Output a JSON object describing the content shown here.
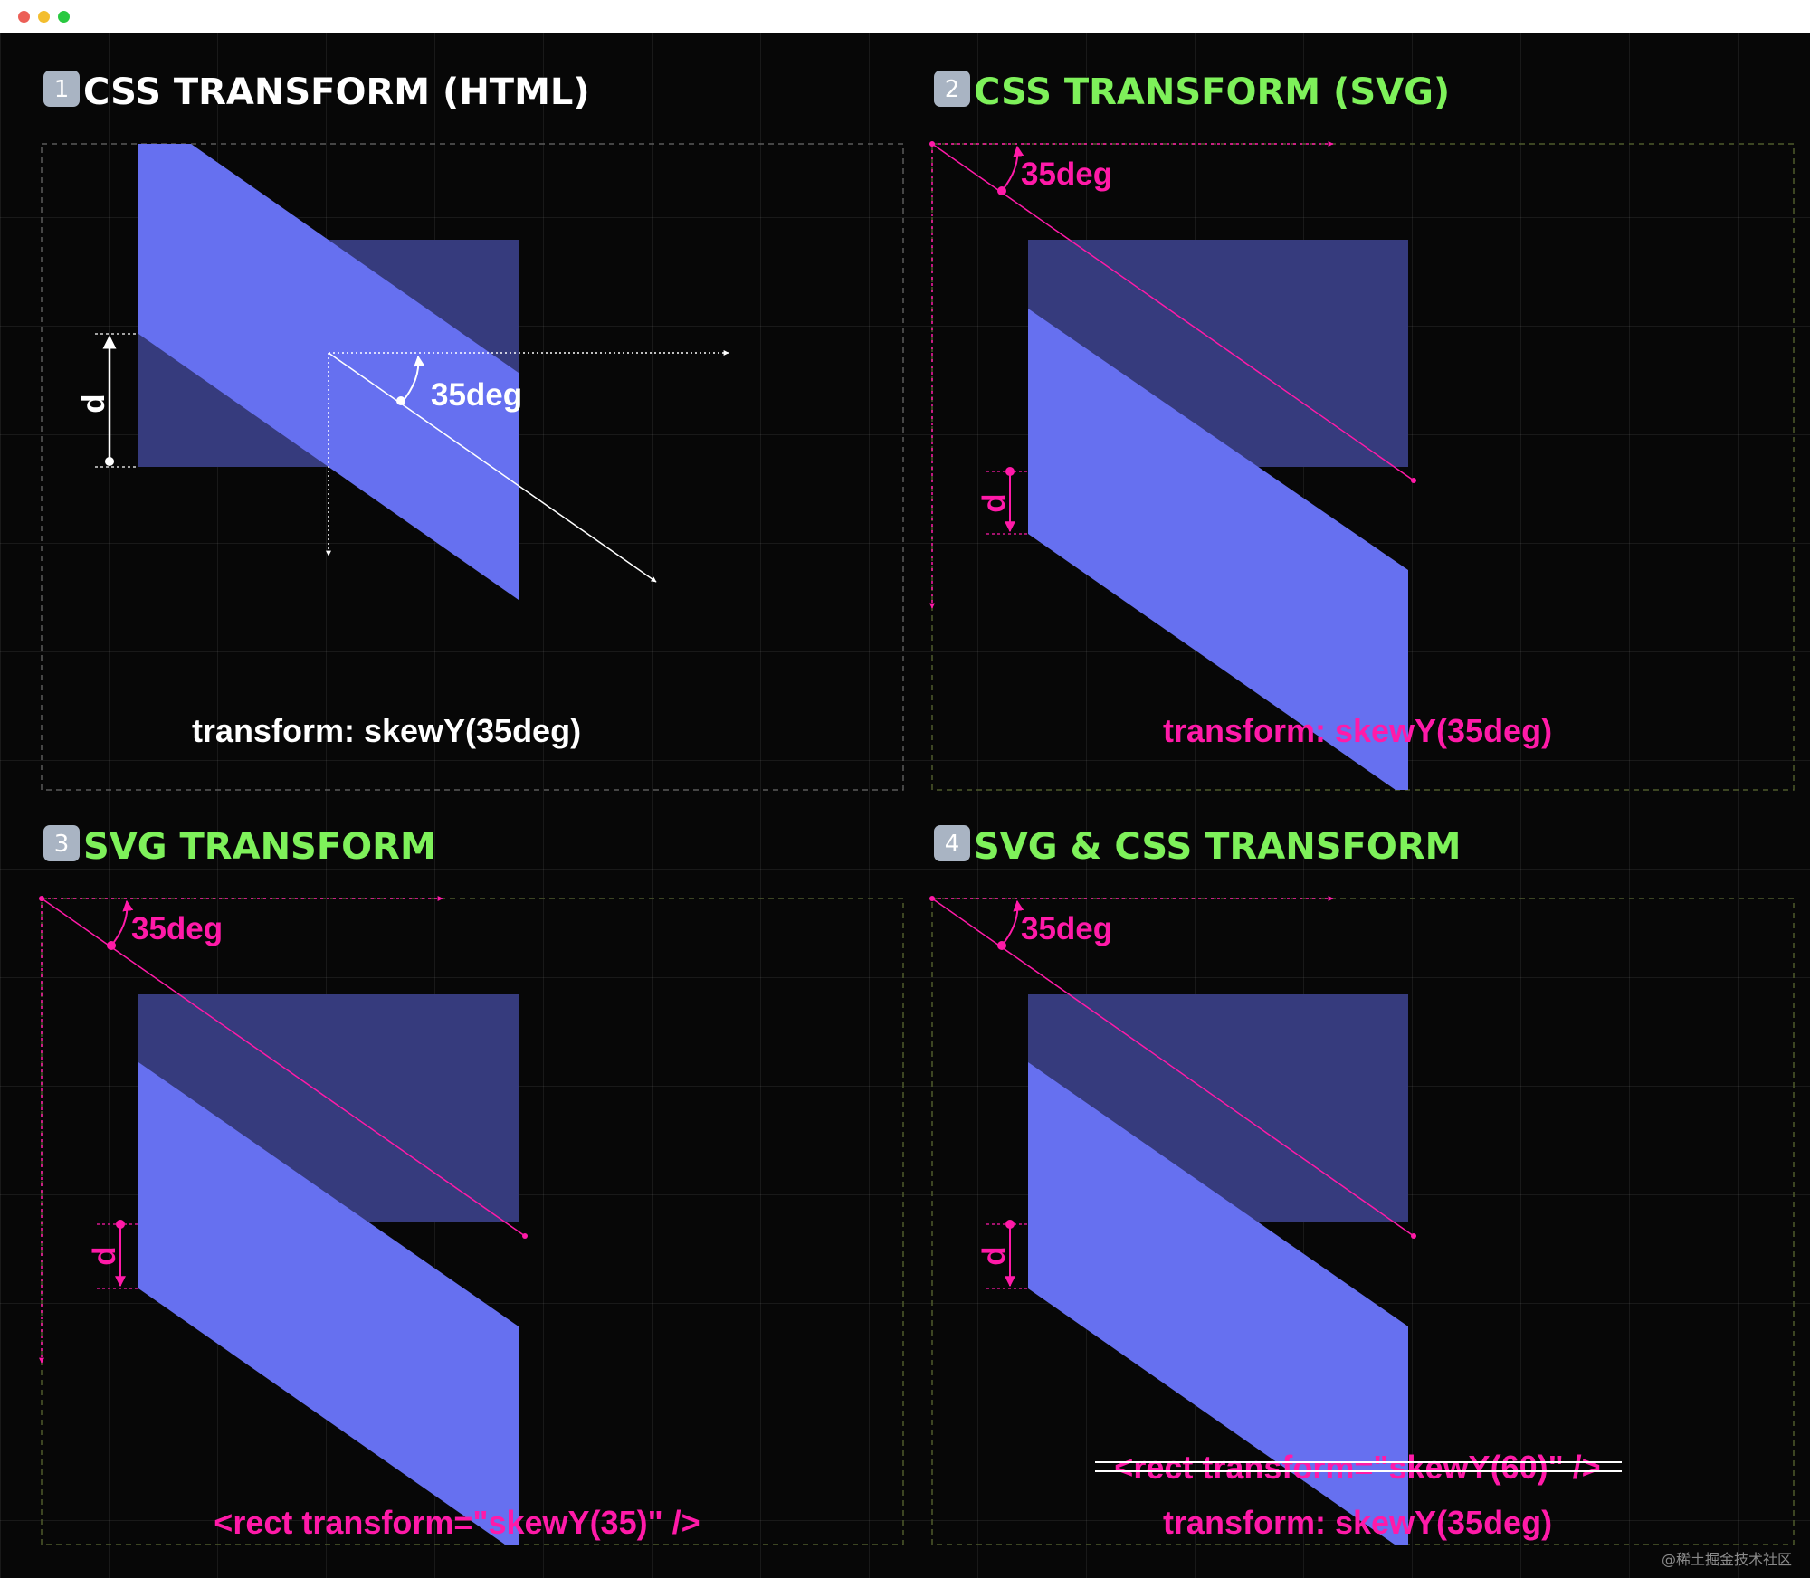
{
  "window": {
    "controls": [
      "close",
      "minimize",
      "maximize"
    ],
    "colors": {
      "close": "#ec5f57",
      "minimize": "#f3be2f",
      "maximize": "#29c940"
    }
  },
  "colors": {
    "background": "#070707",
    "rect_dark": "#363b7d",
    "rect_light": "#6670f0",
    "accent_magenta": "#ff1aa8",
    "title_green": "#7ef15a",
    "title_white": "#ffffff"
  },
  "panels": [
    {
      "badge": "1",
      "title": "CSS TRANSFORM (HTML)",
      "angle_label": "35deg",
      "d_label": "d",
      "code_line": "transform: skewY(35deg)"
    },
    {
      "badge": "2",
      "title": "CSS TRANSFORM (SVG)",
      "angle_label": "35deg",
      "d_label": "d",
      "code_line": "transform: skewY(35deg)"
    },
    {
      "badge": "3",
      "title": "SVG TRANSFORM",
      "angle_label": "35deg",
      "d_label": "d",
      "code_line": "<rect  transform=\"skewY(35)\"  />"
    },
    {
      "badge": "4",
      "title": "SVG & CSS TRANSFORM",
      "angle_label": "35deg",
      "d_label": "d",
      "code_struck": "<rect  transform=\"skewY(60)\"  />",
      "code_line": "transform: skewY(35deg)"
    }
  ],
  "watermark": "@稀土掘金技术社区"
}
